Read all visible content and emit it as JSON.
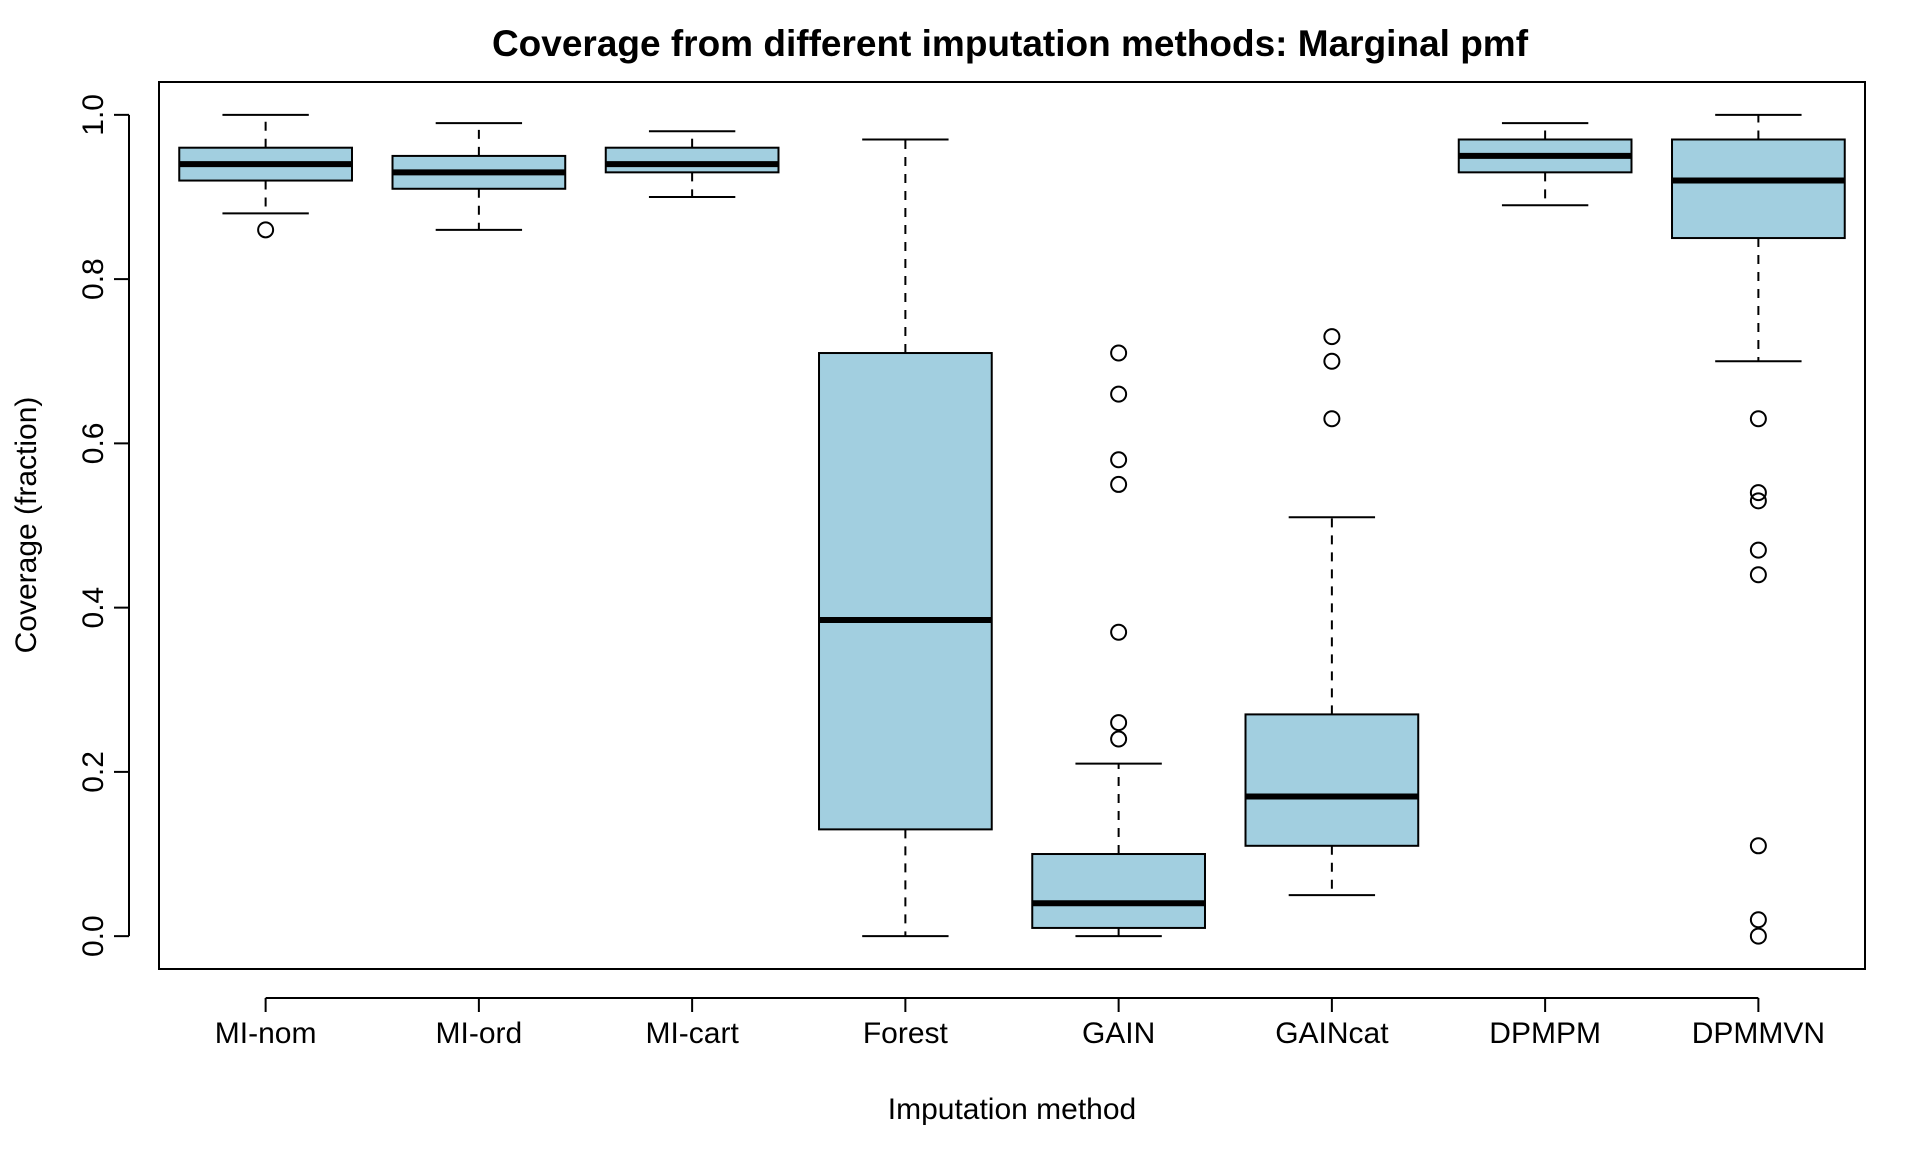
{
  "chart_data": {
    "type": "boxplot",
    "title": "Coverage from different imputation methods: Marginal pmf",
    "xlabel": "Imputation method",
    "ylabel": "Coverage (fraction)",
    "ylim": [
      -0.04,
      1.04
    ],
    "yticks": [
      0.0,
      0.2,
      0.4,
      0.6,
      0.8,
      1.0
    ],
    "ytick_labels": [
      "0.0",
      "0.2",
      "0.4",
      "0.6",
      "0.8",
      "1.0"
    ],
    "grid": false,
    "box_color": "#a2cfe0",
    "categories": [
      "MI-nom",
      "MI-ord",
      "MI-cart",
      "Forest",
      "GAIN",
      "GAINcat",
      "DPMPM",
      "DPMMVN"
    ],
    "boxes": [
      {
        "whisker_low": 0.88,
        "q1": 0.92,
        "median": 0.94,
        "q3": 0.96,
        "whisker_high": 1.0,
        "outliers": [
          0.86
        ]
      },
      {
        "whisker_low": 0.86,
        "q1": 0.91,
        "median": 0.93,
        "q3": 0.95,
        "whisker_high": 0.99,
        "outliers": []
      },
      {
        "whisker_low": 0.9,
        "q1": 0.93,
        "median": 0.94,
        "q3": 0.96,
        "whisker_high": 0.98,
        "outliers": []
      },
      {
        "whisker_low": 0.0,
        "q1": 0.13,
        "median": 0.385,
        "q3": 0.71,
        "whisker_high": 0.97,
        "outliers": []
      },
      {
        "whisker_low": 0.0,
        "q1": 0.01,
        "median": 0.04,
        "q3": 0.1,
        "whisker_high": 0.21,
        "outliers": [
          0.24,
          0.26,
          0.37,
          0.55,
          0.58,
          0.66,
          0.71
        ]
      },
      {
        "whisker_low": 0.05,
        "q1": 0.11,
        "median": 0.17,
        "q3": 0.27,
        "whisker_high": 0.51,
        "outliers": [
          0.63,
          0.7,
          0.73
        ]
      },
      {
        "whisker_low": 0.89,
        "q1": 0.93,
        "median": 0.95,
        "q3": 0.97,
        "whisker_high": 0.99,
        "outliers": []
      },
      {
        "whisker_low": 0.7,
        "q1": 0.85,
        "median": 0.92,
        "q3": 0.97,
        "whisker_high": 1.0,
        "outliers": [
          0.0,
          0.02,
          0.11,
          0.44,
          0.47,
          0.53,
          0.54,
          0.63
        ]
      }
    ]
  }
}
